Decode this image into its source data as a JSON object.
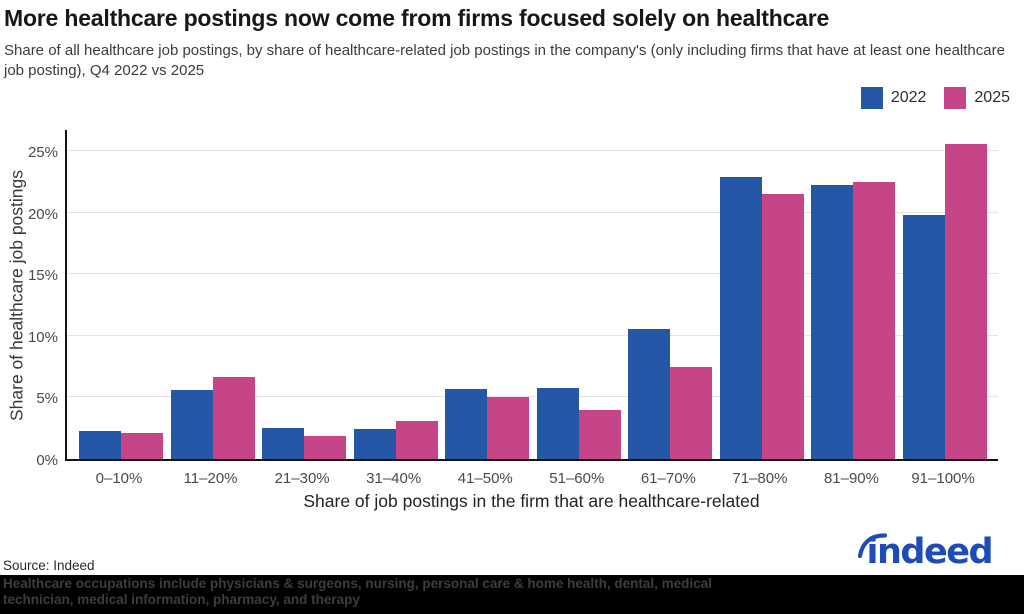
{
  "header": {
    "title": "More healthcare postings now come from firms focused solely on healthcare",
    "subtitle": "Share of all healthcare job postings, by share of healthcare-related job postings in the company's (only including firms that have at least one healthcare job posting), Q4 2022 vs 2025"
  },
  "chart_data": {
    "type": "bar",
    "title": "More healthcare postings now come from firms focused solely on healthcare",
    "subtitle": "Share of all healthcare job postings, by share of healthcare-related job postings in the company's (only including firms that have at least one healthcare job posting), Q4 2022 vs 2025",
    "categories": [
      "0–10%",
      "11–20%",
      "21–30%",
      "31–40%",
      "41–50%",
      "51–60%",
      "61–70%",
      "71–80%",
      "81–90%",
      "91–100%"
    ],
    "series": [
      {
        "name": "2022",
        "color": "#2557a7",
        "values": [
          2.3,
          5.6,
          2.5,
          2.4,
          5.7,
          5.8,
          10.6,
          22.9,
          22.3,
          19.8
        ]
      },
      {
        "name": "2025",
        "color": "#c64587",
        "values": [
          2.1,
          6.7,
          1.9,
          3.1,
          5.0,
          4.0,
          7.5,
          21.5,
          22.5,
          25.6
        ]
      }
    ],
    "xlabel": "Share of job postings in the firm that are healthcare-related",
    "ylabel": "Share of healthcare job postings",
    "ylim": [
      0,
      26.9
    ],
    "yticks": [
      0,
      5,
      10,
      15,
      20,
      25
    ],
    "ytick_suffix": "%",
    "grid": true,
    "legend_position": "top-right"
  },
  "footer": {
    "source": "Source: Indeed",
    "note": "Healthcare occupations include physicians & surgeons, nursing, personal care & home health, dental, medical technician, medical information, pharmacy, and therapy",
    "logo_text": "indeed"
  },
  "colors": {
    "series_2022": "#2557a7",
    "series_2025": "#c64587",
    "logo_blue": "#1e4bb8",
    "footnote_band": "#000000"
  }
}
